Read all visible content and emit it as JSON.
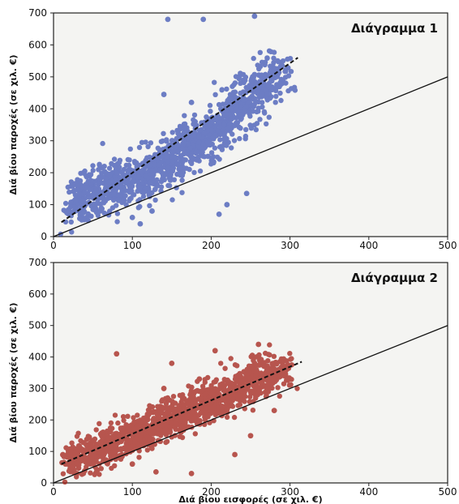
{
  "chart_data": [
    {
      "type": "scatter",
      "title": "Διάγραμμα 1",
      "xlabel": "",
      "ylabel": "Διά βίου παροχές (σε χιλ. €)",
      "xlim": [
        0,
        500
      ],
      "ylim": [
        0,
        700
      ],
      "xticks": [
        "0",
        "100",
        "200",
        "300",
        "400",
        "500"
      ],
      "yticks": [
        "0",
        "100",
        "200",
        "300",
        "400",
        "500",
        "600",
        "700"
      ],
      "point_color": "#3f56b5",
      "trend_line": {
        "x": [
          10,
          310
        ],
        "y": [
          45,
          560
        ],
        "style": "dashed",
        "color": "#111111"
      },
      "reference_line": {
        "x": [
          0,
          500
        ],
        "y": [
          0,
          500
        ],
        "style": "solid",
        "color": "#111111"
      },
      "cloud": [
        {
          "x": 20,
          "y": 100
        },
        {
          "x": 50,
          "y": 135
        },
        {
          "x": 80,
          "y": 160
        },
        {
          "x": 110,
          "y": 185
        },
        {
          "x": 140,
          "y": 230
        },
        {
          "x": 170,
          "y": 280
        },
        {
          "x": 200,
          "y": 320
        },
        {
          "x": 230,
          "y": 390
        },
        {
          "x": 260,
          "y": 450
        },
        {
          "x": 290,
          "y": 520
        }
      ],
      "outliers": [
        {
          "x": 145,
          "y": 680
        },
        {
          "x": 190,
          "y": 680
        },
        {
          "x": 255,
          "y": 690
        },
        {
          "x": 140,
          "y": 445
        },
        {
          "x": 175,
          "y": 420
        },
        {
          "x": 115,
          "y": 140
        },
        {
          "x": 125,
          "y": 80
        },
        {
          "x": 210,
          "y": 70
        },
        {
          "x": 245,
          "y": 135
        },
        {
          "x": 110,
          "y": 40
        },
        {
          "x": 220,
          "y": 100
        },
        {
          "x": 100,
          "y": 60
        }
      ]
    },
    {
      "type": "scatter",
      "title": "Διάγραμμα 2",
      "xlabel": "Διά βίου εισφορές (σε χιλ. €)",
      "ylabel": "Διά βίου παροχές (σε χιλ. €)",
      "xlim": [
        0,
        500
      ],
      "ylim": [
        0,
        700
      ],
      "xticks": [
        "0",
        "100",
        "200",
        "300",
        "400",
        "500"
      ],
      "yticks": [
        "0",
        "100",
        "200",
        "300",
        "400",
        "500",
        "600",
        "700"
      ],
      "point_color": "#a32118",
      "trend_line": {
        "x": [
          10,
          315
        ],
        "y": [
          60,
          385
        ],
        "style": "dashed",
        "color": "#111111"
      },
      "reference_line": {
        "x": [
          0,
          500
        ],
        "y": [
          0,
          500
        ],
        "style": "solid",
        "color": "#111111"
      },
      "cloud": [
        {
          "x": 20,
          "y": 70
        },
        {
          "x": 50,
          "y": 100
        },
        {
          "x": 80,
          "y": 130
        },
        {
          "x": 110,
          "y": 160
        },
        {
          "x": 140,
          "y": 195
        },
        {
          "x": 170,
          "y": 230
        },
        {
          "x": 200,
          "y": 265
        },
        {
          "x": 230,
          "y": 295
        },
        {
          "x": 260,
          "y": 330
        },
        {
          "x": 290,
          "y": 360
        }
      ],
      "outliers": [
        {
          "x": 80,
          "y": 410
        },
        {
          "x": 150,
          "y": 380
        },
        {
          "x": 205,
          "y": 420
        },
        {
          "x": 260,
          "y": 440
        },
        {
          "x": 130,
          "y": 35
        },
        {
          "x": 175,
          "y": 30
        },
        {
          "x": 100,
          "y": 60
        },
        {
          "x": 230,
          "y": 90
        },
        {
          "x": 250,
          "y": 150
        },
        {
          "x": 140,
          "y": 300
        },
        {
          "x": 185,
          "y": 330
        },
        {
          "x": 280,
          "y": 230
        }
      ]
    }
  ]
}
